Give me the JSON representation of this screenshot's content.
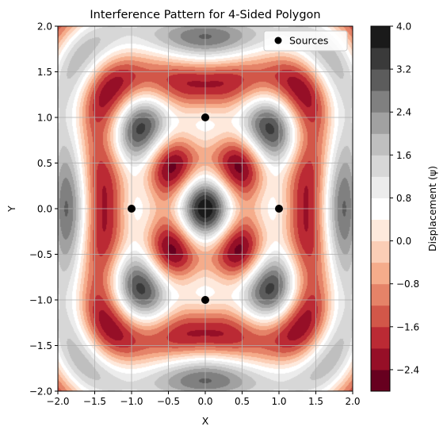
{
  "chart_data": {
    "type": "heatmap",
    "subtype": "filled-contour",
    "title": "Interference Pattern for 4-Sided Polygon",
    "xlabel": "X",
    "ylabel": "Y",
    "xlim": [
      -2.0,
      2.0
    ],
    "ylim": [
      -2.0,
      2.0
    ],
    "x_ticks": [
      "−2.0",
      "−1.5",
      "−1.0",
      "−0.5",
      "0.0",
      "0.5",
      "1.0",
      "1.5",
      "2.0"
    ],
    "y_ticks": [
      "−2.0",
      "−1.5",
      "−1.0",
      "−0.5",
      "0.0",
      "0.5",
      "1.0",
      "1.5",
      "2.0"
    ],
    "grid": true,
    "field": "sum over sources of cos(2*pi*r/1.0) with r = distance to source",
    "sources": {
      "name": "Sources",
      "x": [
        1.0,
        0.0,
        -1.0,
        0.0
      ],
      "y": [
        0.0,
        1.0,
        0.0,
        -1.0
      ],
      "color": "#000000"
    },
    "legend": {
      "entries": [
        "Sources"
      ],
      "placement": "upper-right"
    },
    "colorbar": {
      "label": "Displacement (ψ)",
      "min": -2.8,
      "max": 4.0,
      "step": 0.4,
      "tick_labels": [
        "−2.4",
        "−1.6",
        "−0.8",
        "0.0",
        "0.8",
        "1.6",
        "2.4",
        "3.2",
        "4.0"
      ],
      "tick_values": [
        -2.4,
        -1.6,
        -0.8,
        0.0,
        0.8,
        1.6,
        2.4,
        3.2,
        4.0
      ],
      "colormap": "RdGy",
      "colors": [
        "#67001f",
        "#b2182b",
        "#d6604d",
        "#f4a582",
        "#fddbc7",
        "#ffffff",
        "#e0e0e0",
        "#bababa",
        "#878787",
        "#4d4d4d",
        "#1a1a1a"
      ]
    }
  }
}
